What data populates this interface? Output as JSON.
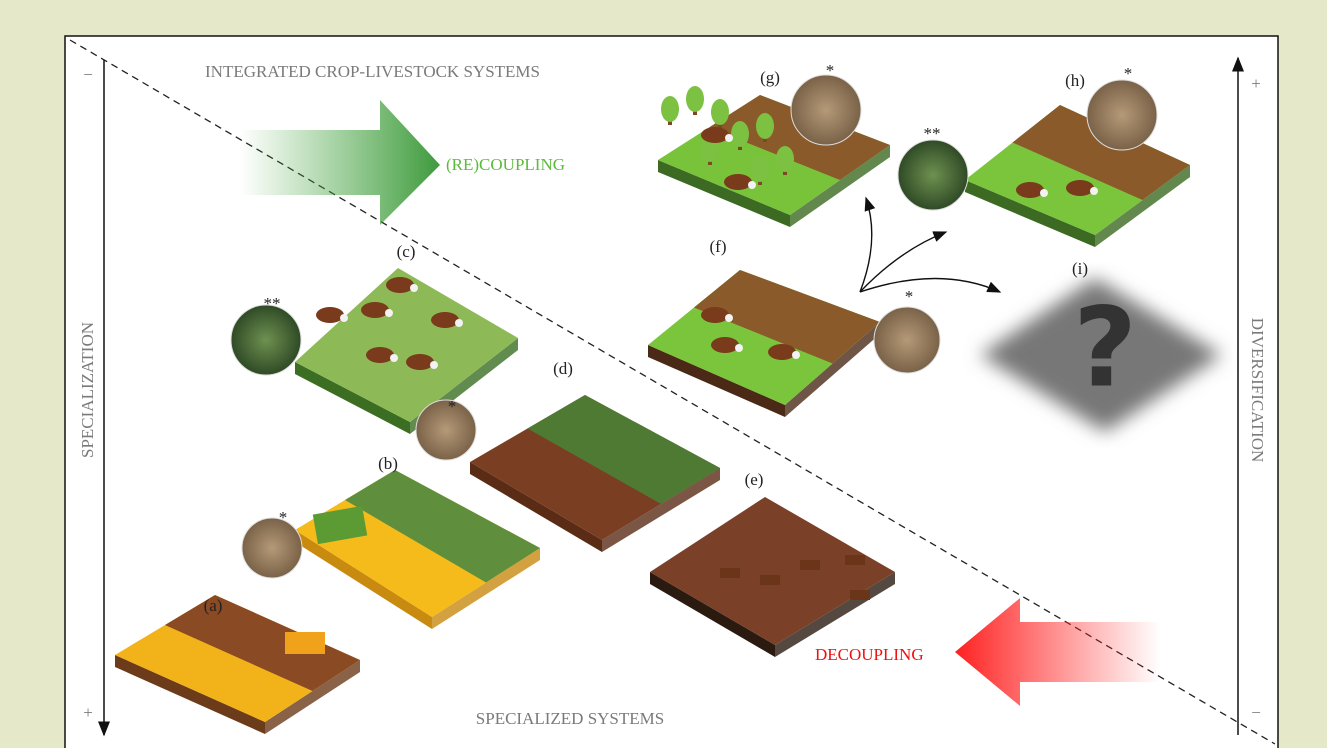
{
  "labels": {
    "integrated": "INTEGRATED CROP-LIVESTOCK SYSTEMS",
    "specialized": "SPECIALIZED SYSTEMS",
    "recoupling": "(RE)COUPLING",
    "decoupling": "DECOUPLING"
  },
  "axes": {
    "left": {
      "label": "SPECIALIZATION",
      "top": "−",
      "bottom": "+"
    },
    "right": {
      "label": "DIVERSIFICATION",
      "top": "+",
      "bottom": "−"
    }
  },
  "panels": [
    {
      "label": "(a)"
    },
    {
      "label": "(b)",
      "marks": [
        "*"
      ]
    },
    {
      "label": "(c)",
      "marks": [
        "**"
      ]
    },
    {
      "label": "(d)",
      "marks": [
        "*"
      ]
    },
    {
      "label": "(e)"
    },
    {
      "label": "(f)",
      "marks": [
        "*"
      ]
    },
    {
      "label": "(g)",
      "marks": [
        "*"
      ]
    },
    {
      "label": "(h)",
      "marks": [
        "*",
        "**"
      ]
    },
    {
      "label": "(i)",
      "symbol": "?"
    }
  ]
}
